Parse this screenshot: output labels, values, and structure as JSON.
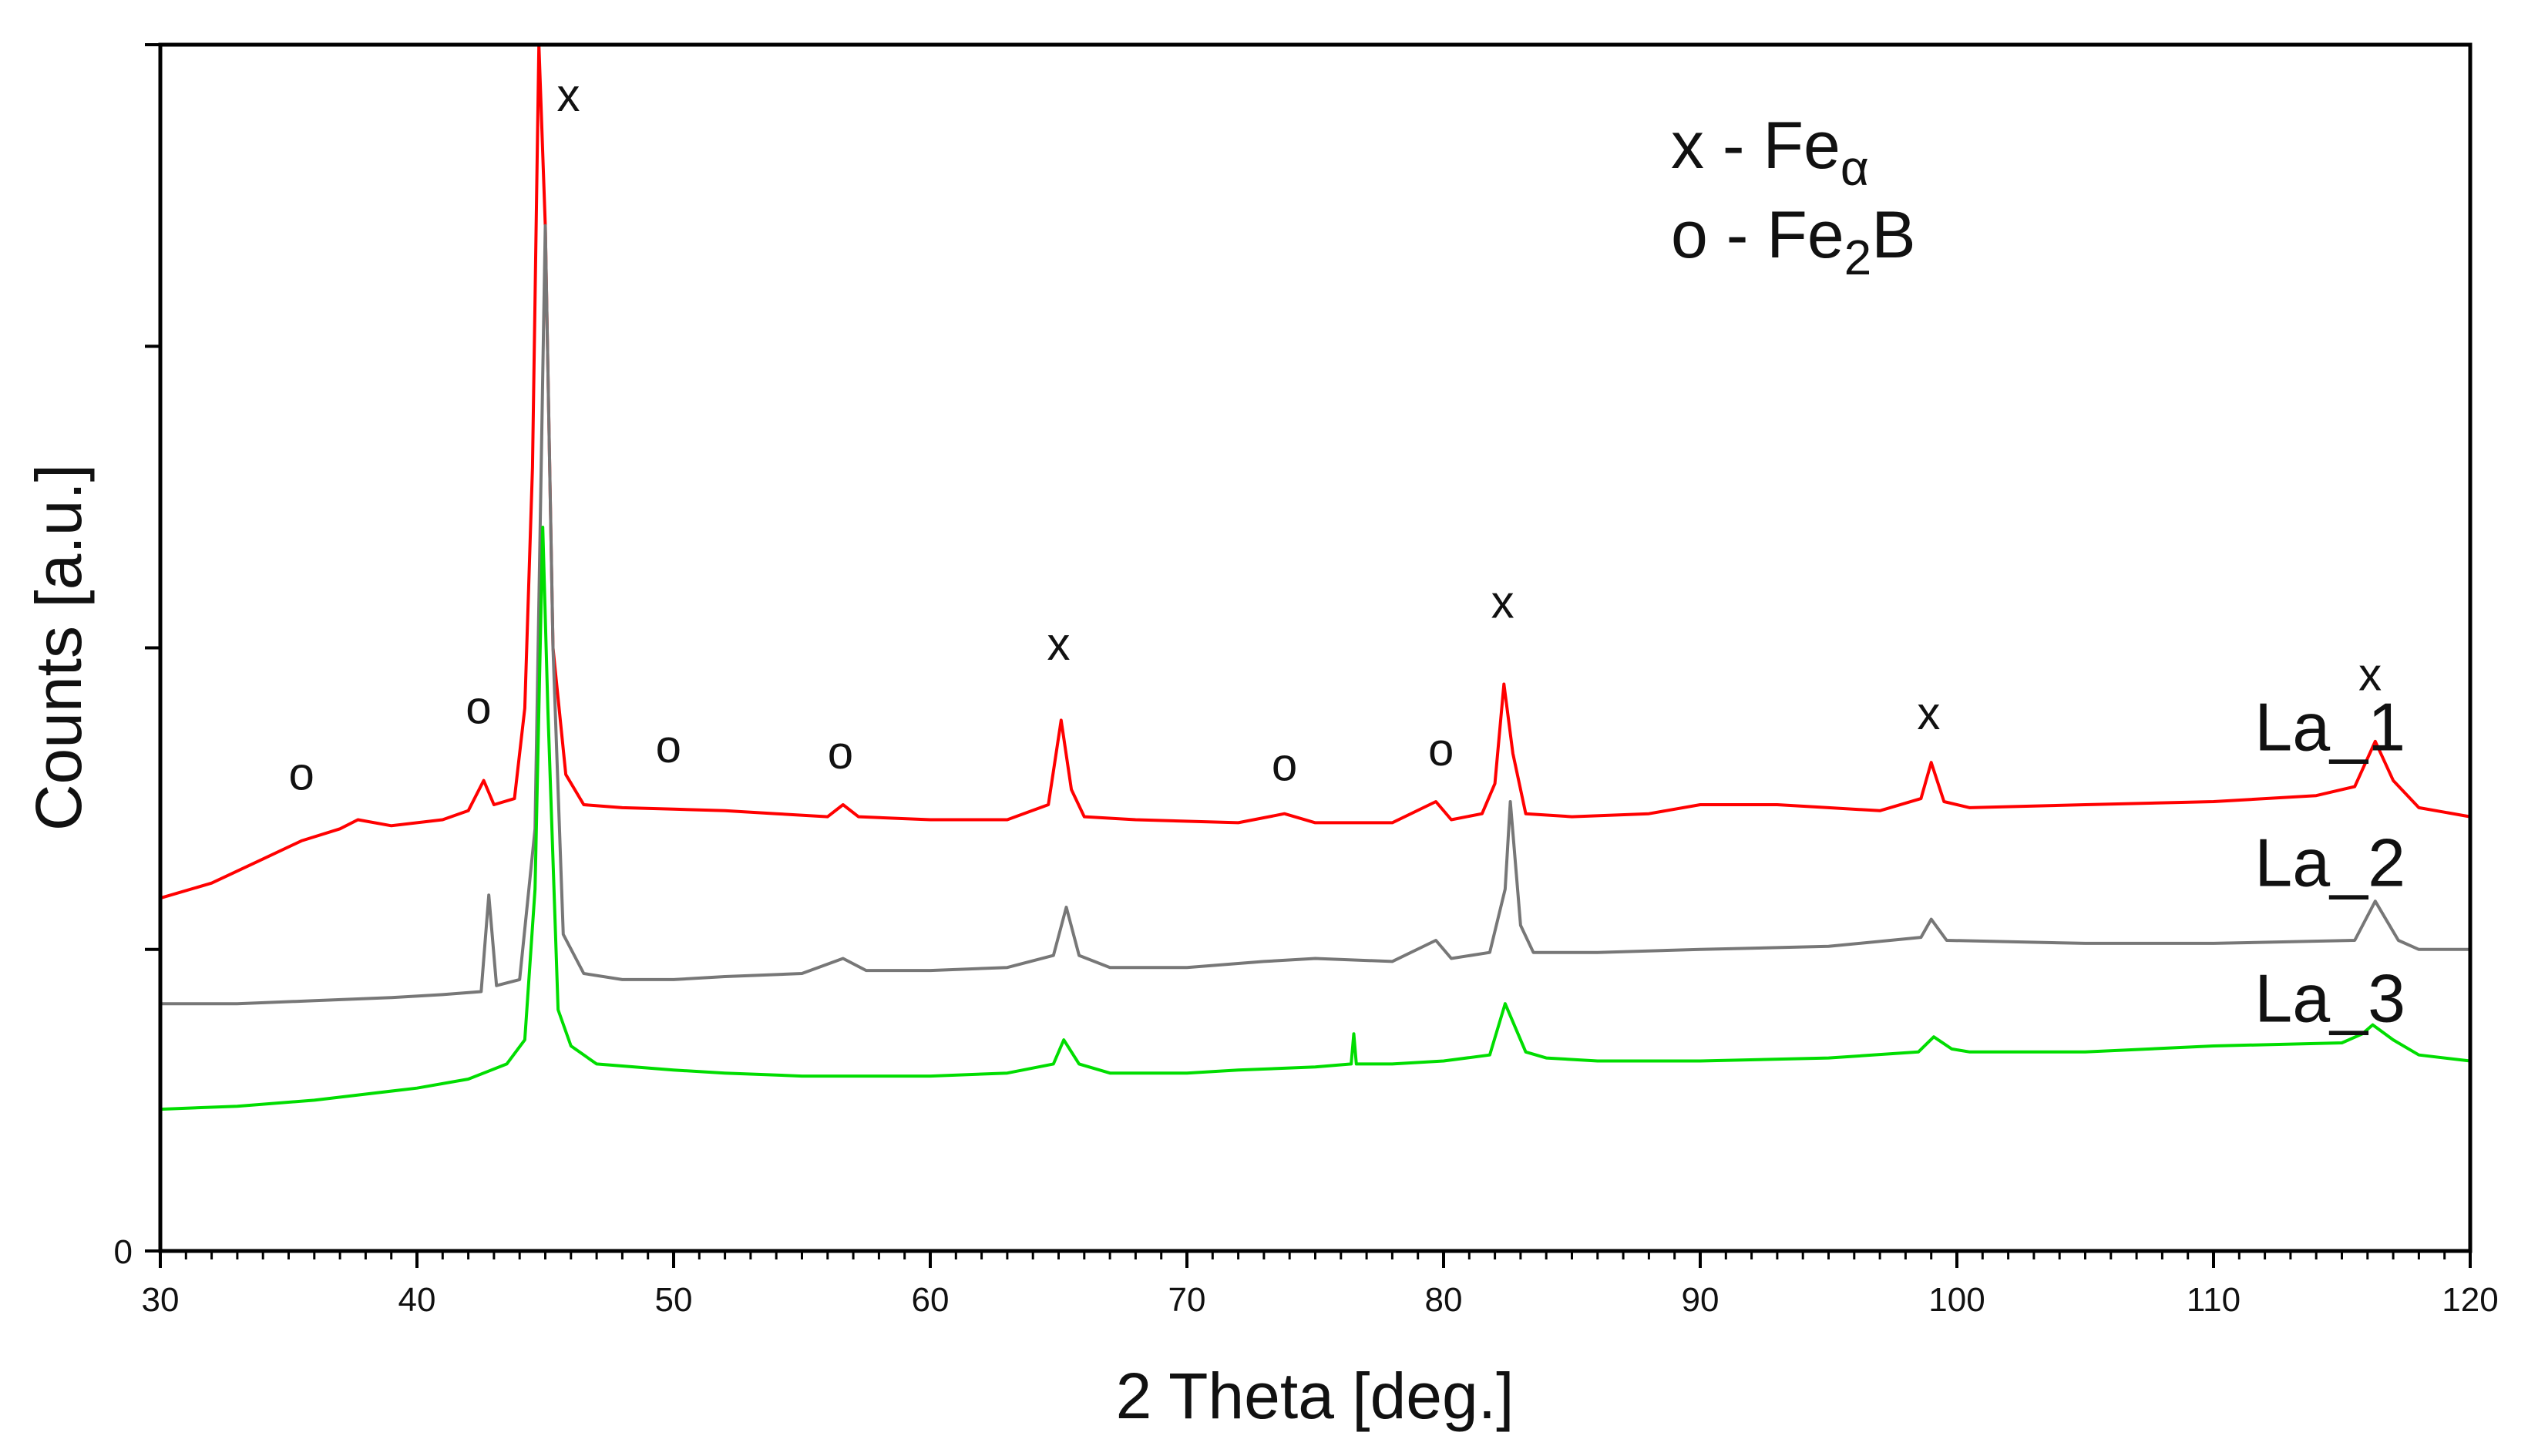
{
  "chart_data": {
    "type": "line",
    "title": "",
    "xlabel": "2 Theta [deg.]",
    "ylabel": "Counts [a.u.]",
    "xlim": [
      30,
      120
    ],
    "ylim": [
      0,
      4000
    ],
    "x_ticks": [
      "30",
      "40",
      "50",
      "60",
      "70",
      "80",
      "90",
      "100",
      "110",
      "120"
    ],
    "y_tick_values": [
      0,
      1000,
      2000,
      3000,
      4000
    ],
    "y_tick_labels": [
      "0"
    ],
    "legend": [
      {
        "symbol": "x",
        "phase": "Fe",
        "subscript": "α"
      },
      {
        "symbol": "o",
        "phase": "Fe",
        "subscript": "2",
        "suffix": "B"
      }
    ],
    "series": [
      {
        "name": "La_1",
        "color": "#ff0000",
        "points": [
          [
            30,
            1170
          ],
          [
            32,
            1220
          ],
          [
            34,
            1300
          ],
          [
            35.5,
            1360
          ],
          [
            37,
            1400
          ],
          [
            37.7,
            1430
          ],
          [
            39,
            1410
          ],
          [
            41,
            1430
          ],
          [
            42,
            1460
          ],
          [
            42.6,
            1560
          ],
          [
            43.0,
            1480
          ],
          [
            43.8,
            1500
          ],
          [
            44.2,
            1800
          ],
          [
            44.5,
            2600
          ],
          [
            44.75,
            4000
          ],
          [
            45.0,
            3400
          ],
          [
            45.3,
            2000
          ],
          [
            45.8,
            1580
          ],
          [
            46.5,
            1480
          ],
          [
            48,
            1470
          ],
          [
            50,
            1465
          ],
          [
            52,
            1460
          ],
          [
            54,
            1450
          ],
          [
            56,
            1440
          ],
          [
            56.6,
            1480
          ],
          [
            57.2,
            1440
          ],
          [
            60,
            1430
          ],
          [
            63,
            1430
          ],
          [
            64.6,
            1480
          ],
          [
            65.1,
            1760
          ],
          [
            65.5,
            1530
          ],
          [
            66,
            1440
          ],
          [
            68,
            1430
          ],
          [
            72,
            1420
          ],
          [
            73.8,
            1450
          ],
          [
            75,
            1420
          ],
          [
            78,
            1420
          ],
          [
            79.7,
            1490
          ],
          [
            80.3,
            1430
          ],
          [
            81.5,
            1450
          ],
          [
            82.0,
            1550
          ],
          [
            82.35,
            1880
          ],
          [
            82.7,
            1650
          ],
          [
            83.2,
            1450
          ],
          [
            85,
            1440
          ],
          [
            88,
            1450
          ],
          [
            90,
            1480
          ],
          [
            93,
            1480
          ],
          [
            95,
            1470
          ],
          [
            97,
            1460
          ],
          [
            98.6,
            1500
          ],
          [
            99.0,
            1620
          ],
          [
            99.5,
            1490
          ],
          [
            100.5,
            1470
          ],
          [
            105,
            1480
          ],
          [
            110,
            1490
          ],
          [
            114,
            1510
          ],
          [
            115.5,
            1540
          ],
          [
            116.3,
            1690
          ],
          [
            117,
            1560
          ],
          [
            118,
            1470
          ],
          [
            120,
            1440
          ]
        ]
      },
      {
        "name": "La_2",
        "color": "#777777",
        "points": [
          [
            30,
            820
          ],
          [
            33,
            820
          ],
          [
            36,
            830
          ],
          [
            39,
            840
          ],
          [
            41,
            850
          ],
          [
            42.5,
            860
          ],
          [
            42.8,
            1180
          ],
          [
            43.1,
            880
          ],
          [
            44,
            900
          ],
          [
            44.6,
            1400
          ],
          [
            45.0,
            3400
          ],
          [
            45.3,
            2000
          ],
          [
            45.7,
            1050
          ],
          [
            46.5,
            920
          ],
          [
            48,
            900
          ],
          [
            50,
            900
          ],
          [
            52,
            910
          ],
          [
            55,
            920
          ],
          [
            56.6,
            970
          ],
          [
            57.5,
            930
          ],
          [
            60,
            930
          ],
          [
            63,
            940
          ],
          [
            64.8,
            980
          ],
          [
            65.3,
            1140
          ],
          [
            65.8,
            980
          ],
          [
            67,
            940
          ],
          [
            70,
            940
          ],
          [
            73,
            960
          ],
          [
            75,
            970
          ],
          [
            78,
            960
          ],
          [
            79.7,
            1030
          ],
          [
            80.3,
            970
          ],
          [
            81.8,
            990
          ],
          [
            82.4,
            1200
          ],
          [
            82.6,
            1490
          ],
          [
            83.0,
            1080
          ],
          [
            83.5,
            990
          ],
          [
            86,
            990
          ],
          [
            90,
            1000
          ],
          [
            95,
            1010
          ],
          [
            98.6,
            1040
          ],
          [
            99.0,
            1100
          ],
          [
            99.6,
            1030
          ],
          [
            105,
            1020
          ],
          [
            110,
            1020
          ],
          [
            115.5,
            1030
          ],
          [
            116.3,
            1160
          ],
          [
            117.2,
            1030
          ],
          [
            118,
            1000
          ],
          [
            120,
            1000
          ]
        ]
      },
      {
        "name": "La_3",
        "color": "#00dd00",
        "points": [
          [
            30,
            470
          ],
          [
            33,
            480
          ],
          [
            36,
            500
          ],
          [
            38,
            520
          ],
          [
            40,
            540
          ],
          [
            42,
            570
          ],
          [
            43.5,
            620
          ],
          [
            44.2,
            700
          ],
          [
            44.6,
            1200
          ],
          [
            44.9,
            2400
          ],
          [
            45.1,
            1800
          ],
          [
            45.5,
            800
          ],
          [
            46,
            680
          ],
          [
            47,
            620
          ],
          [
            50,
            600
          ],
          [
            52,
            590
          ],
          [
            55,
            580
          ],
          [
            58,
            580
          ],
          [
            60,
            580
          ],
          [
            63,
            590
          ],
          [
            64.8,
            620
          ],
          [
            65.2,
            700
          ],
          [
            65.8,
            620
          ],
          [
            67,
            590
          ],
          [
            70,
            590
          ],
          [
            72,
            600
          ],
          [
            75,
            610
          ],
          [
            76.4,
            620
          ],
          [
            76.5,
            720
          ],
          [
            76.6,
            620
          ],
          [
            78,
            620
          ],
          [
            80,
            630
          ],
          [
            81.8,
            650
          ],
          [
            82.4,
            820
          ],
          [
            83.2,
            660
          ],
          [
            84,
            640
          ],
          [
            86,
            630
          ],
          [
            90,
            630
          ],
          [
            95,
            640
          ],
          [
            98.5,
            660
          ],
          [
            99.1,
            710
          ],
          [
            99.8,
            670
          ],
          [
            100.5,
            660
          ],
          [
            105,
            660
          ],
          [
            110,
            680
          ],
          [
            115,
            690
          ],
          [
            115.8,
            720
          ],
          [
            116.2,
            750
          ],
          [
            117,
            700
          ],
          [
            118,
            650
          ],
          [
            120,
            630
          ]
        ]
      }
    ],
    "annotations": [
      {
        "text": "o",
        "x": 35.5,
        "y": 1530
      },
      {
        "text": "o",
        "x": 42.4,
        "y": 1750
      },
      {
        "text": "x",
        "x": 45.9,
        "y": 3780
      },
      {
        "text": "o",
        "x": 49.8,
        "y": 1620
      },
      {
        "text": "o",
        "x": 56.5,
        "y": 1600
      },
      {
        "text": "x",
        "x": 65.0,
        "y": 1960
      },
      {
        "text": "o",
        "x": 73.8,
        "y": 1560
      },
      {
        "text": "o",
        "x": 79.9,
        "y": 1610
      },
      {
        "text": "x",
        "x": 82.3,
        "y": 2100
      },
      {
        "text": "x",
        "x": 98.9,
        "y": 1730
      },
      {
        "text": "x",
        "x": 116.1,
        "y": 1860
      }
    ],
    "series_labels": [
      {
        "text": "La_1",
        "x": 111.6,
        "y": 1660
      },
      {
        "text": "La_2",
        "x": 111.6,
        "y": 1210
      },
      {
        "text": "La_3",
        "x": 111.6,
        "y": 760
      }
    ]
  }
}
